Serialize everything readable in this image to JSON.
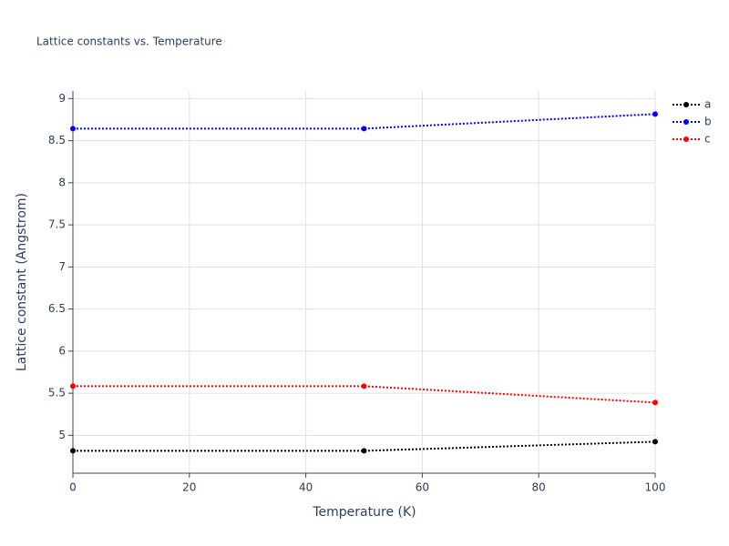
{
  "chart_data": {
    "type": "line",
    "title": "Lattice constants vs. Temperature",
    "x_label": "Temperature (K)",
    "y_label": "Lattice constant (Angstrom)",
    "x": [
      0,
      50,
      100
    ],
    "series": [
      {
        "name": "a",
        "color": "#000000",
        "values": [
          4.816,
          4.816,
          4.924
        ]
      },
      {
        "name": "b",
        "color": "#0000ff",
        "values": [
          8.643,
          8.643,
          8.816
        ]
      },
      {
        "name": "c",
        "color": "#ff0000",
        "values": [
          5.584,
          5.584,
          5.389
        ]
      }
    ],
    "xlim": [
      0,
      100
    ],
    "xticks": [
      0,
      20,
      40,
      60,
      80,
      100
    ],
    "ylim": [
      4.55,
      9.09
    ],
    "yticks": [
      5,
      5.5,
      6,
      6.5,
      7,
      7.5,
      8,
      8.5,
      9
    ],
    "grid": true,
    "legend": "right"
  }
}
